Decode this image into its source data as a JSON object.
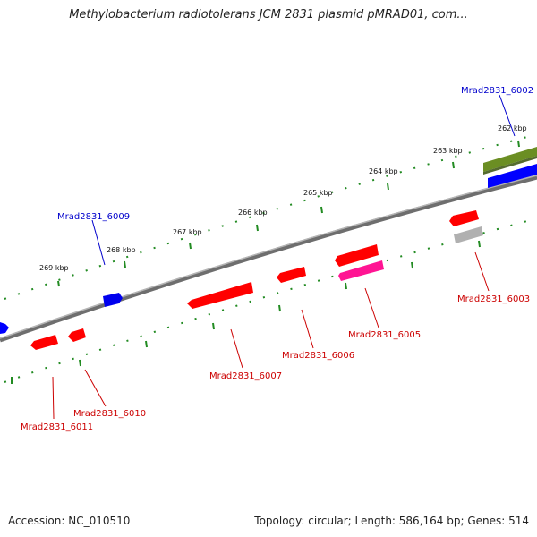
{
  "title": "Methylobacterium radiotolerans JCM 2831 plasmid pMRAD01, com...",
  "footer": {
    "accession_text": "Accession: NC_010510",
    "summary_text": "Topology: circular; Length: 586,164 bp; Genes: 514"
  },
  "scale_labels": [
    "262 kbp",
    "263 kbp",
    "264 kbp",
    "265 kbp",
    "266 kbp",
    "267 kbp",
    "268 kbp",
    "269 kbp"
  ],
  "genes": [
    {
      "label": "Mrad2831_6002",
      "strand": "forward",
      "color": "#0000cc"
    },
    {
      "label": "Mrad2831_6003",
      "strand": "reverse",
      "color": "#cc0000"
    },
    {
      "label": "Mrad2831_6005",
      "strand": "reverse",
      "color": "#cc0000"
    },
    {
      "label": "Mrad2831_6006",
      "strand": "reverse",
      "color": "#cc0000"
    },
    {
      "label": "Mrad2831_6007",
      "strand": "reverse",
      "color": "#cc0000"
    },
    {
      "label": "Mrad2831_6009",
      "strand": "forward",
      "color": "#0000cc"
    },
    {
      "label": "Mrad2831_6010",
      "strand": "reverse",
      "color": "#cc0000"
    },
    {
      "label": "Mrad2831_6011",
      "strand": "reverse",
      "color": "#cc0000"
    }
  ],
  "colors": {
    "backbone": "#808080",
    "forward_feature": "#0000ff",
    "reverse_feature": "#ff0000",
    "magenta_feature": "#ff1493",
    "olive_feature": "#6b8e23",
    "grey_feature": "#b0b0b0",
    "scale_ticks": "#228b22"
  }
}
